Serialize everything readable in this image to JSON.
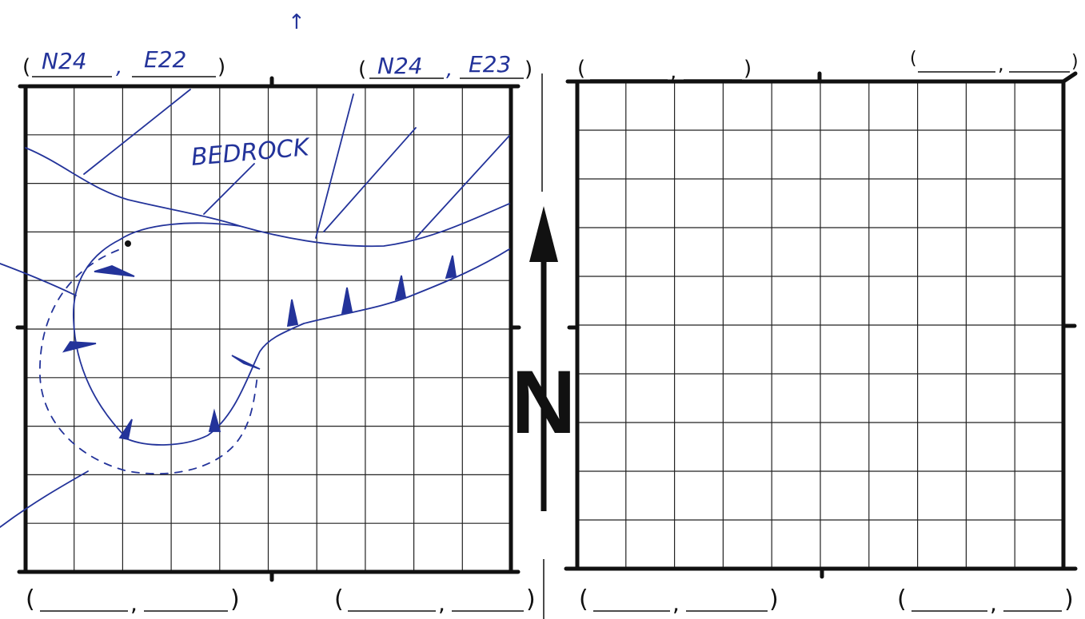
{
  "top_arrow": "↑",
  "left_grid": {
    "corner_top_left": {
      "open": "(",
      "northing": "N24",
      "sep": ",",
      "easting": "E22",
      "close": ")"
    },
    "corner_top_right": {
      "open": "(",
      "northing": "N24",
      "sep": ",",
      "easting": "E23",
      "close": ")"
    },
    "corner_bottom_left": {
      "open": "(",
      "northing": "",
      "sep": ",",
      "easting": "",
      "close": ")"
    },
    "corner_bottom_right": {
      "open": "(",
      "northing": "",
      "sep": ",",
      "easting": "",
      "close": ")"
    },
    "annotation": "BEDROCK",
    "grid_cells": 10
  },
  "right_grid": {
    "corner_top_left": {
      "open": "(",
      "northing": "",
      "sep": ",",
      "easting": "",
      "close": ")"
    },
    "corner_top_right": {
      "open": "(",
      "northing": "",
      "sep": ",",
      "easting": "",
      "close": ")"
    },
    "corner_bottom_left": {
      "open": "(",
      "northing": "",
      "sep": ",",
      "easting": "",
      "close": ")"
    },
    "corner_bottom_right": {
      "open": "(",
      "northing": "",
      "sep": ",",
      "easting": "",
      "close": ")"
    },
    "grid_cells": 10
  },
  "north_arrow": {
    "label": "N"
  },
  "colors": {
    "ink": "#23339a",
    "pencil": "#111111",
    "paper": "#ffffff"
  }
}
